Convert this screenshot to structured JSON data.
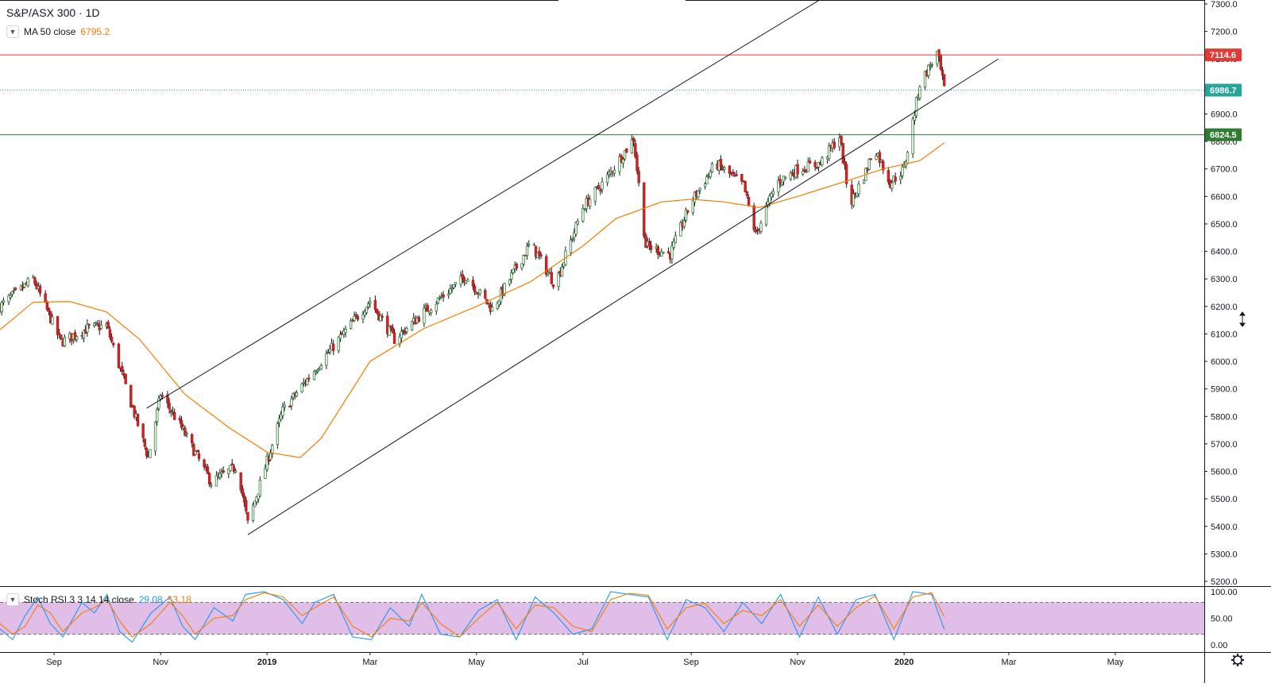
{
  "header": {
    "title": "S&P/ASX 300 · 1D",
    "ma_name": "MA 50 close",
    "ma_value": "6795.2",
    "rsi_name": "Stoch RSI 3 3 14 14 close",
    "rsi_k": "29.08",
    "rsi_d": "53.18"
  },
  "colors": {
    "up": "#26a69a",
    "down": "#ef5350",
    "ma": "#f57c00",
    "resistance": "#e53935",
    "support": "#2e7d32",
    "last_price": "#26a69a",
    "rsi_k": "#2196f3",
    "rsi_d": "#f57c00",
    "rsi_band": "#e1bee7"
  },
  "icons": {
    "legend_toggle": "chevron-down-icon",
    "settings": "gear-icon",
    "cursor": "resize-cursor-icon"
  },
  "chart_data": [
    {
      "type": "candlestick",
      "title": "S&P/ASX 300 · 1D",
      "ylim": [
        5200,
        7300
      ],
      "y_ticks": [
        "7300.0",
        "7200.0",
        "7100.0",
        "7000.0",
        "6900.0",
        "6800.0",
        "6700.0",
        "6600.0",
        "6500.0",
        "6400.0",
        "6300.0",
        "6200.0",
        "6100.0",
        "6000.0",
        "5900.0",
        "5800.0",
        "5700.0",
        "5600.0",
        "5500.0",
        "5400.0",
        "5300.0",
        "5200.0"
      ],
      "x_ticks": [
        "Sep",
        "Nov",
        "2019",
        "Mar",
        "May",
        "Jul",
        "Sep",
        "Nov",
        "2020",
        "Mar",
        "May"
      ],
      "x_ticks_bold": [
        "2019",
        "2020"
      ],
      "price_path": [
        [
          "2018-08-01",
          6200
        ],
        [
          "2018-08-20",
          6300
        ],
        [
          "2018-09-05",
          6070
        ],
        [
          "2018-09-20",
          6120
        ],
        [
          "2018-10-01",
          6130
        ],
        [
          "2018-10-25",
          5650
        ],
        [
          "2018-11-01",
          5880
        ],
        [
          "2018-11-12",
          5770
        ],
        [
          "2018-11-30",
          5560
        ],
        [
          "2018-12-15",
          5620
        ],
        [
          "2018-12-21",
          5410
        ],
        [
          "2019-01-10",
          5820
        ],
        [
          "2019-02-01",
          6000
        ],
        [
          "2019-03-01",
          6220
        ],
        [
          "2019-03-15",
          6080
        ],
        [
          "2019-04-01",
          6180
        ],
        [
          "2019-04-25",
          6310
        ],
        [
          "2019-05-10",
          6190
        ],
        [
          "2019-06-01",
          6430
        ],
        [
          "2019-06-15",
          6280
        ],
        [
          "2019-07-01",
          6560
        ],
        [
          "2019-07-15",
          6670
        ],
        [
          "2019-07-30",
          6810
        ],
        [
          "2019-08-06",
          6420
        ],
        [
          "2019-08-20",
          6390
        ],
        [
          "2019-09-01",
          6580
        ],
        [
          "2019-09-15",
          6720
        ],
        [
          "2019-10-01",
          6640
        ],
        [
          "2019-10-08",
          6460
        ],
        [
          "2019-10-20",
          6650
        ],
        [
          "2019-11-01",
          6700
        ],
        [
          "2019-11-14",
          6720
        ],
        [
          "2019-11-25",
          6820
        ],
        [
          "2019-12-01",
          6570
        ],
        [
          "2019-12-10",
          6690
        ],
        [
          "2019-12-15",
          6780
        ],
        [
          "2019-12-24",
          6650
        ],
        [
          "2020-01-01",
          6700
        ],
        [
          "2020-01-10",
          7010
        ],
        [
          "2020-01-20",
          7120
        ],
        [
          "2020-01-24",
          6990
        ]
      ],
      "ma": {
        "name": "MA 50 close",
        "value": "6795.2",
        "points": [
          [
            "2018-08-01",
            6115
          ],
          [
            "2018-08-20",
            6215
          ],
          [
            "2018-09-10",
            6218
          ],
          [
            "2018-10-01",
            6180
          ],
          [
            "2018-10-20",
            6080
          ],
          [
            "2018-11-15",
            5880
          ],
          [
            "2018-12-10",
            5760
          ],
          [
            "2019-01-01",
            5670
          ],
          [
            "2019-01-20",
            5650
          ],
          [
            "2019-02-01",
            5720
          ],
          [
            "2019-03-01",
            6000
          ],
          [
            "2019-04-01",
            6120
          ],
          [
            "2019-05-01",
            6200
          ],
          [
            "2019-06-01",
            6290
          ],
          [
            "2019-07-01",
            6420
          ],
          [
            "2019-07-20",
            6520
          ],
          [
            "2019-08-15",
            6580
          ],
          [
            "2019-09-01",
            6590
          ],
          [
            "2019-09-20",
            6580
          ],
          [
            "2019-10-10",
            6560
          ],
          [
            "2019-11-01",
            6600
          ],
          [
            "2019-12-01",
            6660
          ],
          [
            "2019-12-20",
            6700
          ],
          [
            "2020-01-10",
            6730
          ],
          [
            "2020-01-24",
            6795
          ]
        ]
      },
      "levels": [
        {
          "name": "resistance",
          "value": 7114.6,
          "label": "7114.6",
          "style": "solid",
          "color": "#e53935"
        },
        {
          "name": "last-price",
          "value": 6986.7,
          "label": "6986.7",
          "style": "dotted",
          "color": "#26a69a"
        },
        {
          "name": "support",
          "value": 6824.5,
          "label": "6824.5",
          "style": "solid",
          "color": "#2e7d32"
        }
      ],
      "trendlines": [
        {
          "name": "channel-upper",
          "from": [
            "2018-10-24",
            5830
          ],
          "to": [
            "2019-11-15",
            7320
          ]
        },
        {
          "name": "channel-lower",
          "from": [
            "2018-12-21",
            5370
          ],
          "to": [
            "2020-02-24",
            7100
          ]
        }
      ]
    },
    {
      "type": "line",
      "title": "Stoch RSI 3 3 14 14 close",
      "ylim": [
        0,
        100
      ],
      "y_ticks": [
        "100.00",
        "50.00",
        "0.00"
      ],
      "band": [
        20,
        80
      ],
      "series": [
        {
          "name": "K",
          "last": "29.08",
          "points": [
            [
              0,
              30
            ],
            [
              2,
              10
            ],
            [
              4,
              55
            ],
            [
              6,
              90
            ],
            [
              8,
              40
            ],
            [
              10,
              15
            ],
            [
              13,
              80
            ],
            [
              15,
              60
            ],
            [
              17,
              95
            ],
            [
              19,
              25
            ],
            [
              21,
              5
            ],
            [
              24,
              60
            ],
            [
              27,
              90
            ],
            [
              29,
              35
            ],
            [
              31,
              10
            ],
            [
              34,
              70
            ],
            [
              37,
              45
            ],
            [
              39,
              95
            ],
            [
              42,
              100
            ],
            [
              45,
              85
            ],
            [
              48,
              40
            ],
            [
              50,
              80
            ],
            [
              53,
              95
            ],
            [
              56,
              15
            ],
            [
              59,
              10
            ],
            [
              62,
              70
            ],
            [
              65,
              35
            ],
            [
              67,
              95
            ],
            [
              70,
              20
            ],
            [
              73,
              15
            ],
            [
              76,
              65
            ],
            [
              79,
              85
            ],
            [
              82,
              10
            ],
            [
              85,
              90
            ],
            [
              88,
              60
            ],
            [
              91,
              20
            ],
            [
              94,
              30
            ],
            [
              97,
              100
            ],
            [
              100,
              95
            ],
            [
              103,
              90
            ],
            [
              106,
              10
            ],
            [
              109,
              85
            ],
            [
              112,
              70
            ],
            [
              115,
              25
            ],
            [
              118,
              80
            ],
            [
              121,
              40
            ],
            [
              124,
              95
            ],
            [
              127,
              15
            ],
            [
              130,
              90
            ],
            [
              133,
              20
            ],
            [
              136,
              85
            ],
            [
              139,
              95
            ],
            [
              142,
              10
            ],
            [
              145,
              100
            ],
            [
              148,
              95
            ],
            [
              150,
              29
            ]
          ]
        },
        {
          "name": "D",
          "last": "53.18",
          "points": [
            [
              0,
              40
            ],
            [
              2,
              20
            ],
            [
              4,
              35
            ],
            [
              6,
              75
            ],
            [
              8,
              60
            ],
            [
              10,
              25
            ],
            [
              13,
              60
            ],
            [
              15,
              70
            ],
            [
              17,
              85
            ],
            [
              19,
              45
            ],
            [
              21,
              15
            ],
            [
              24,
              40
            ],
            [
              27,
              80
            ],
            [
              29,
              55
            ],
            [
              31,
              20
            ],
            [
              34,
              50
            ],
            [
              37,
              55
            ],
            [
              39,
              85
            ],
            [
              42,
              98
            ],
            [
              45,
              90
            ],
            [
              48,
              55
            ],
            [
              50,
              70
            ],
            [
              53,
              90
            ],
            [
              56,
              35
            ],
            [
              59,
              15
            ],
            [
              62,
              50
            ],
            [
              65,
              45
            ],
            [
              67,
              80
            ],
            [
              70,
              40
            ],
            [
              73,
              15
            ],
            [
              76,
              50
            ],
            [
              79,
              80
            ],
            [
              82,
              30
            ],
            [
              85,
              75
            ],
            [
              88,
              70
            ],
            [
              91,
              35
            ],
            [
              94,
              25
            ],
            [
              97,
              85
            ],
            [
              100,
              97
            ],
            [
              103,
              93
            ],
            [
              106,
              30
            ],
            [
              109,
              70
            ],
            [
              112,
              78
            ],
            [
              115,
              40
            ],
            [
              118,
              65
            ],
            [
              121,
              55
            ],
            [
              124,
              85
            ],
            [
              127,
              35
            ],
            [
              130,
              75
            ],
            [
              133,
              35
            ],
            [
              136,
              70
            ],
            [
              139,
              92
            ],
            [
              142,
              30
            ],
            [
              145,
              90
            ],
            [
              148,
              98
            ],
            [
              150,
              53
            ]
          ]
        }
      ]
    }
  ]
}
